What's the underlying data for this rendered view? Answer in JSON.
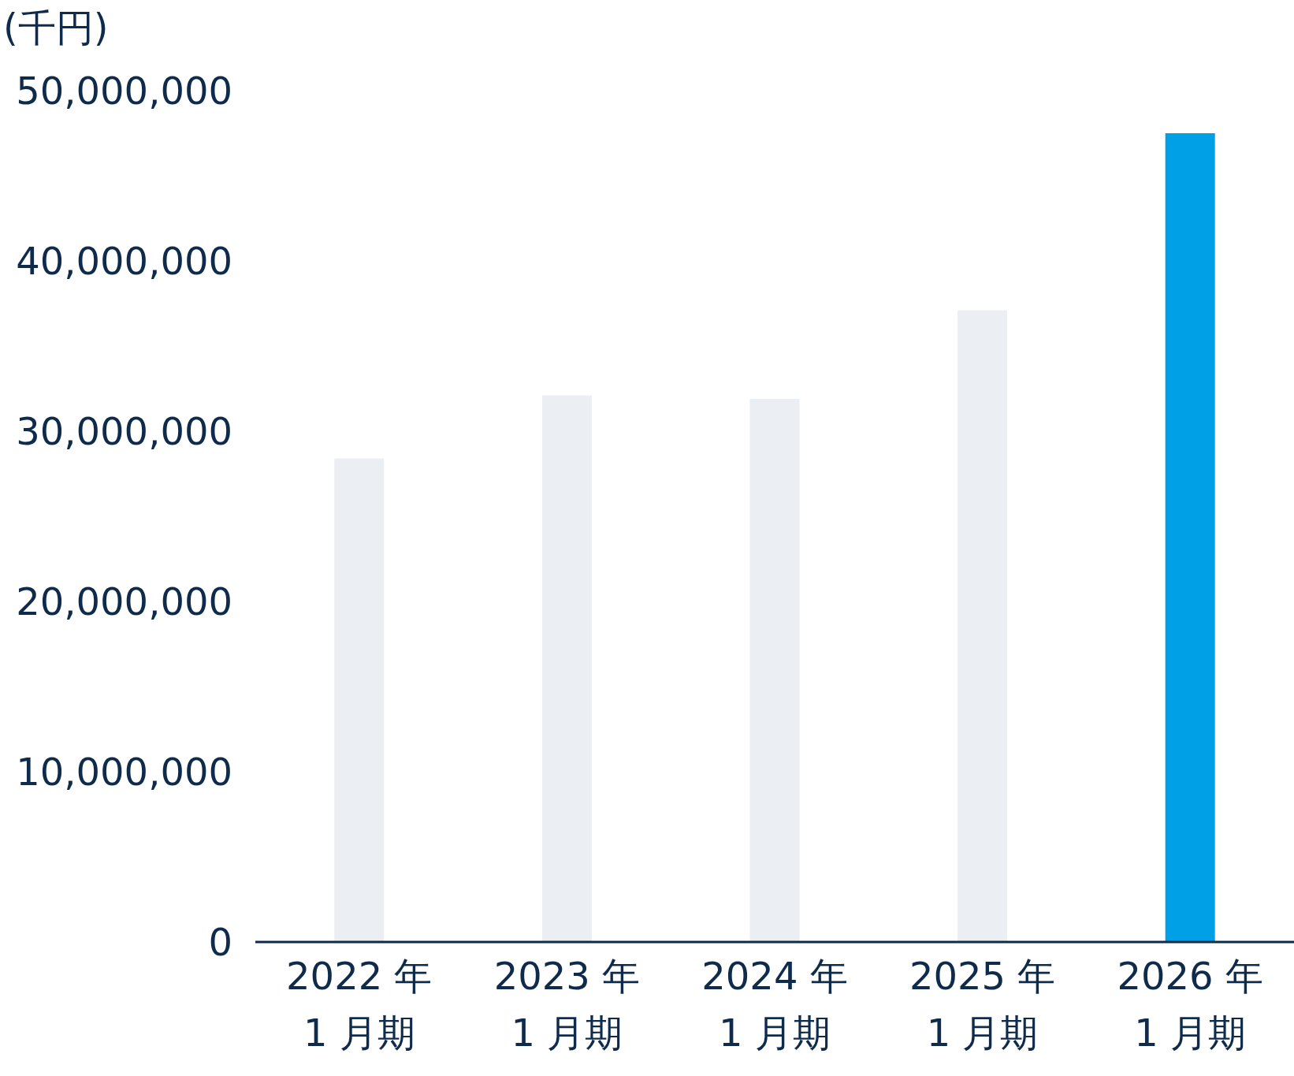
{
  "chart_data": {
    "type": "bar",
    "ylabel": "(千円)",
    "categories": [
      "2022 年 1 月期",
      "2023 年 1 月期",
      "2024 年 1 月期",
      "2025 年 1 月期",
      "2026 年 1 月期"
    ],
    "values": [
      28400000,
      32100000,
      31900000,
      37100000,
      47500000
    ],
    "colors": [
      "#ebeef3",
      "#ebeef3",
      "#ebeef3",
      "#ebeef3",
      "#00a0e6"
    ],
    "ylim": [
      0,
      50000000
    ],
    "yticks": [
      {
        "value": 0,
        "label": "0"
      },
      {
        "value": 10000000,
        "label": "10,000,000"
      },
      {
        "value": 20000000,
        "label": "20,000,000"
      },
      {
        "value": 30000000,
        "label": "30,000,000"
      },
      {
        "value": 40000000,
        "label": "40,000,000"
      },
      {
        "value": 50000000,
        "label": "50,000,000"
      }
    ]
  }
}
